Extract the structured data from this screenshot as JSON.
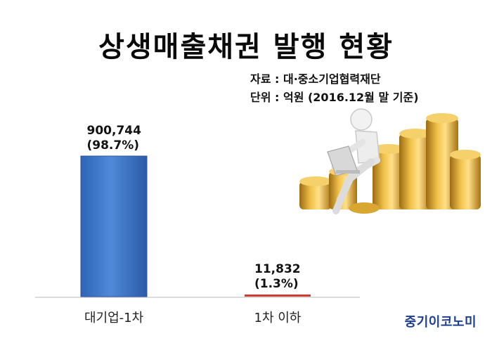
{
  "title": "상생매출채권 발행 현황",
  "meta": {
    "source": "자료 : 대·중소기업협력재단",
    "unit": "단위 : 억원  (2016.12월 말 기준)"
  },
  "chart_data": {
    "type": "bar",
    "title": "상생매출채권 발행 현황",
    "categories": [
      "대기업-1차",
      "1차 이하"
    ],
    "values": [
      900744,
      11832
    ],
    "value_labels": [
      "900,744",
      "11,832"
    ],
    "percent_labels": [
      "(98.7%)",
      "(1.3%)"
    ],
    "ylim": [
      0,
      900744
    ],
    "grid": false,
    "legend": "none",
    "colors": [
      "#3f79c9",
      "#d23b2f"
    ]
  },
  "brand": "중기이코노미",
  "illustration": "stick-figure-with-laptop-on-gold-coin-stacks"
}
